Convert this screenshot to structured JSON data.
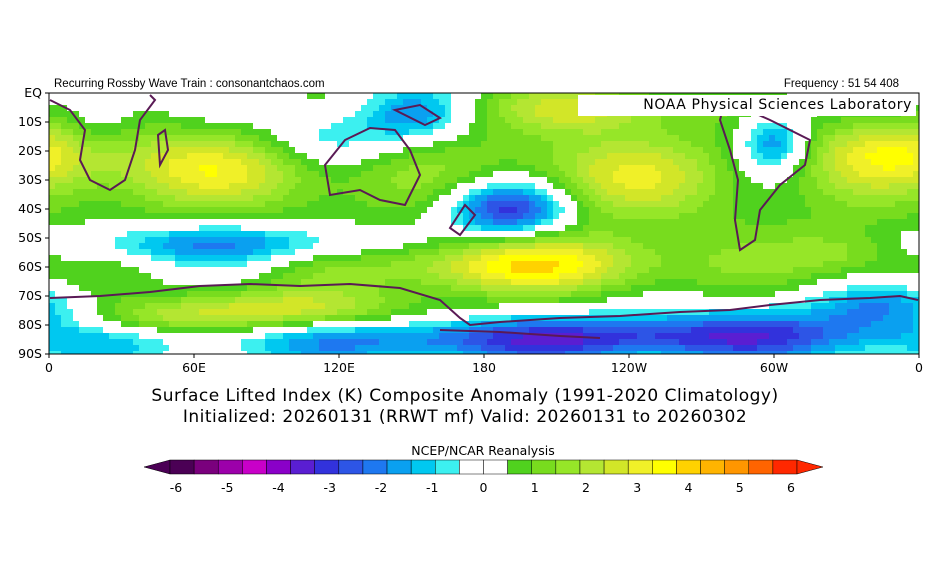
{
  "header": {
    "left": "Recurring Rossby Wave Train : consonantchaos.com",
    "right": "Frequency : 51 54 408"
  },
  "lab_label": "NOAA Physical Sciences Laboratory",
  "axes": {
    "lat_labels": [
      "EQ",
      "10S",
      "20S",
      "30S",
      "40S",
      "50S",
      "60S",
      "70S",
      "80S",
      "90S"
    ],
    "lon_labels": [
      "0",
      "60E",
      "120E",
      "180",
      "120W",
      "60W",
      "0"
    ]
  },
  "title": {
    "line1": "Surface Lifted Index (K) Composite Anomaly (1991-2020 Climatology)",
    "line2": "Initialized: 20260131 (RRWT mf) Valid: 20260131 to 20260302"
  },
  "source": "NCEP/NCAR Reanalysis",
  "colorbar": {
    "labels": [
      "-6",
      "-5",
      "-4",
      "-3",
      "-2",
      "-1",
      "0",
      "1",
      "2",
      "3",
      "4",
      "5",
      "6"
    ],
    "colors": [
      "#4b0055",
      "#7a007d",
      "#9c00aa",
      "#c800c8",
      "#8a00c8",
      "#5a1ed2",
      "#3232dc",
      "#2d55e6",
      "#1e78f0",
      "#0aa0f0",
      "#00c8f0",
      "#3cf0f0",
      "#ffffff",
      "#ffffff",
      "#50d21e",
      "#78dc1e",
      "#96e628",
      "#b4e632",
      "#d2e628",
      "#f0f028",
      "#ffff00",
      "#ffd200",
      "#ffb400",
      "#ff9600",
      "#ff6400",
      "#ff2800"
    ]
  },
  "map": {
    "lat_range": [
      -90,
      0
    ],
    "lon_range": [
      0,
      360
    ],
    "levels": [
      -6,
      -5.5,
      -5,
      -4.5,
      -4,
      -3.5,
      -3,
      -2.5,
      -2,
      -1.5,
      -1,
      -0.5,
      0,
      0.5,
      1,
      1.5,
      2,
      2.5,
      3,
      3.5,
      4,
      4.5,
      5,
      5.5,
      6
    ],
    "colors": [
      "#7a007d",
      "#9c00aa",
      "#c800c8",
      "#8a00c8",
      "#5a1ed2",
      "#3232dc",
      "#2d55e6",
      "#1e78f0",
      "#0aa0f0",
      "#00c8f0",
      "#3cf0f0",
      "#ffffff",
      "#ffffff",
      "#50d21e",
      "#78dc1e",
      "#96e628",
      "#b4e632",
      "#d2e628",
      "#f0f028",
      "#ffff00",
      "#ffd200",
      "#ffb400",
      "#ff9600",
      "#ff6400"
    ],
    "anomalies": [
      {
        "lon": 190,
        "lat": -40,
        "amp": -4.2,
        "slon": 18,
        "slat": 7
      },
      {
        "lon": 75,
        "lat": -52,
        "amp": -2.5,
        "slon": 55,
        "slat": 5
      },
      {
        "lon": 300,
        "lat": -17,
        "amp": -2.6,
        "slon": 10,
        "slat": 7
      },
      {
        "lon": 115,
        "lat": -17,
        "amp": -2.0,
        "slon": 22,
        "slat": 8
      },
      {
        "lon": 150,
        "lat": -8,
        "amp": -1.8,
        "slon": 14,
        "slat": 6
      },
      {
        "lon": 20,
        "lat": -10,
        "amp": -1.2,
        "slon": 12,
        "slat": 8
      },
      {
        "lon": 195,
        "lat": -85,
        "amp": -2.8,
        "slon": 80,
        "slat": 5
      },
      {
        "lon": 300,
        "lat": -82,
        "amp": -2.0,
        "slon": 60,
        "slat": 6
      },
      {
        "lon": 345,
        "lat": -73,
        "amp": -1.8,
        "slon": 20,
        "slat": 5
      },
      {
        "lon": 195,
        "lat": -59,
        "amp": 3.2,
        "slon": 45,
        "slat": 7
      },
      {
        "lon": 95,
        "lat": -75,
        "amp": 2.6,
        "slon": 35,
        "slat": 5
      },
      {
        "lon": 75,
        "lat": -25,
        "amp": 2.4,
        "slon": 45,
        "slat": 9
      },
      {
        "lon": 350,
        "lat": -20,
        "amp": 2.5,
        "slon": 25,
        "slat": 9
      },
      {
        "lon": 235,
        "lat": -28,
        "amp": 2.0,
        "slon": 35,
        "slat": 10
      },
      {
        "lon": 225,
        "lat": -5,
        "amp": 2.3,
        "slon": 30,
        "slat": 6
      },
      {
        "lon": 330,
        "lat": -55,
        "amp": 1.6,
        "slon": 20,
        "slat": 6
      },
      {
        "lon": 40,
        "lat": -78,
        "amp": 1.4,
        "slon": 25,
        "slat": 4
      }
    ],
    "base_anomaly": 0.9
  }
}
